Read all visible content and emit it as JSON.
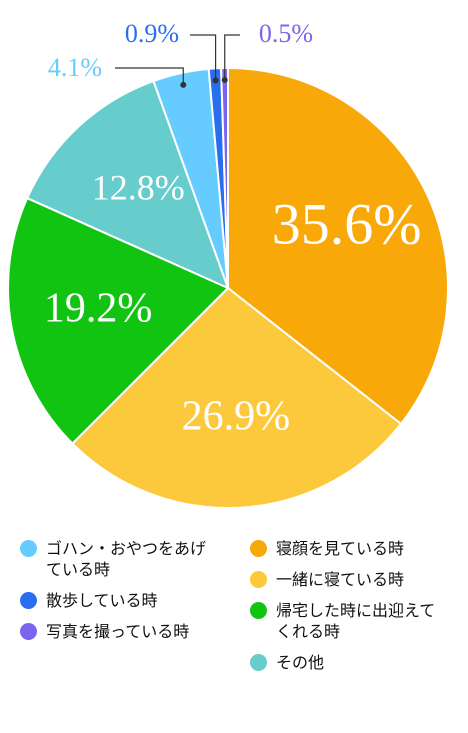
{
  "chart_data": {
    "type": "pie",
    "categories": [
      "寝顔を見ている時",
      "一緒に寝ている時",
      "帰宅した時に出迎えてくれる時",
      "その他",
      "ゴハン・おやつをあげている時",
      "散歩している時",
      "写真を撮っている時"
    ],
    "values": [
      35.6,
      26.9,
      19.2,
      12.8,
      4.1,
      0.9,
      0.5
    ],
    "value_labels": [
      "35.6%",
      "26.9%",
      "19.2%",
      "12.8%",
      "4.1%",
      "0.9%",
      "0.5%"
    ],
    "colors": [
      "#f8a808",
      "#fdc93c",
      "#12c412",
      "#66cccc",
      "#66ccff",
      "#2a6ef0",
      "#7a66ee"
    ]
  }
}
